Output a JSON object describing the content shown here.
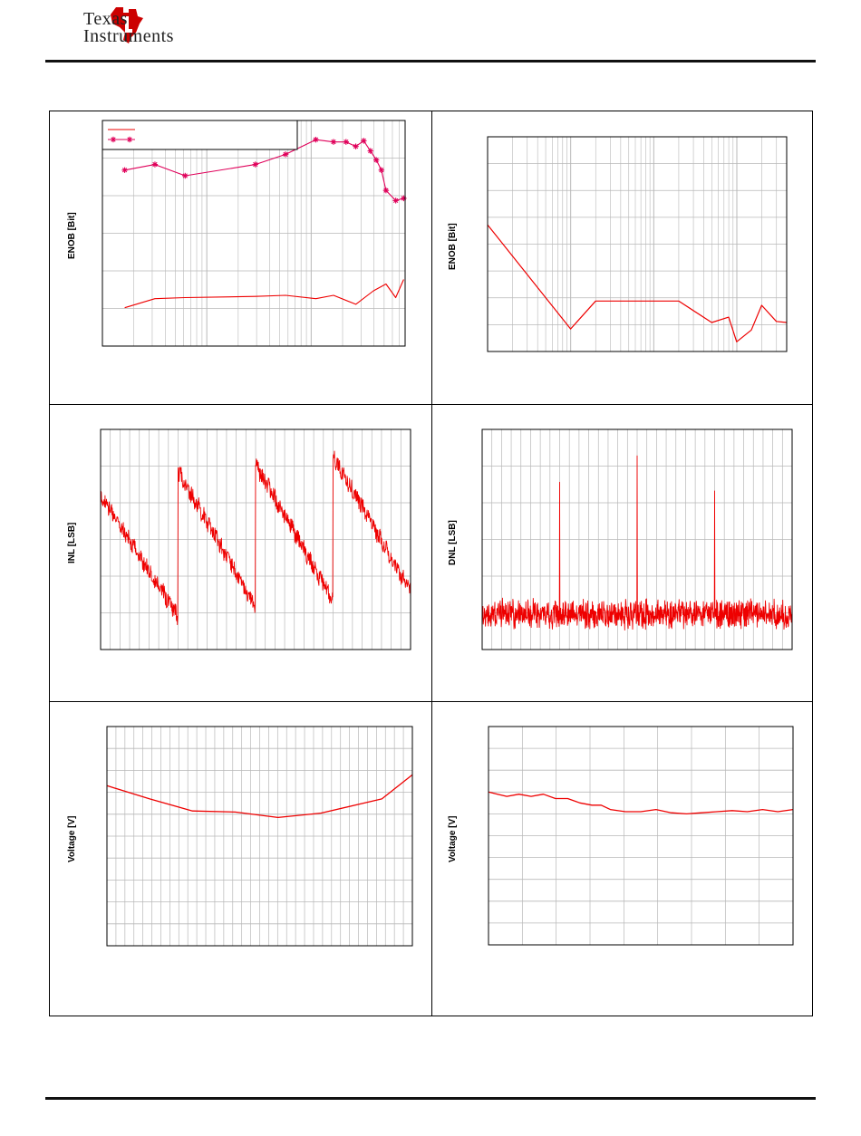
{
  "header": {
    "logo_line1": "Texas",
    "logo_line2": "Instruments",
    "brand_color": "#cc0000"
  },
  "colors": {
    "trace": "#ee0000",
    "trace_marker": "#e0005a",
    "grid": "#b8b8b8"
  },
  "chart_data": [
    {
      "type": "line",
      "ylabel": "ENOB [Bit]",
      "xscale": "log",
      "grid": true,
      "legend": "top-left",
      "series": [
        {
          "marker": "none",
          "x": [
            0.05,
            0.1,
            0.2,
            1,
            2,
            4,
            6,
            10,
            15,
            20,
            25,
            30
          ],
          "y": [
            0.83,
            0.79,
            0.785,
            0.78,
            0.775,
            0.79,
            0.775,
            0.815,
            0.755,
            0.725,
            0.785,
            0.705
          ]
        },
        {
          "marker": "asterisk",
          "x": [
            0.05,
            0.1,
            0.2,
            1,
            2,
            4,
            6,
            8,
            10,
            12,
            14,
            16,
            18,
            20,
            25,
            30
          ],
          "y": [
            0.22,
            0.195,
            0.245,
            0.195,
            0.15,
            0.085,
            0.095,
            0.095,
            0.115,
            0.09,
            0.135,
            0.175,
            0.22,
            0.31,
            0.355,
            0.345
          ]
        }
      ]
    },
    {
      "type": "line",
      "ylabel": "ENOB [Bit]",
      "xscale": "log",
      "grid": true,
      "series": [
        {
          "x": [
            0.1,
            1,
            2,
            20,
            50,
            80,
            100,
            150,
            200,
            300,
            400
          ],
          "y": [
            0.41,
            0.895,
            0.765,
            0.765,
            0.865,
            0.84,
            0.955,
            0.9,
            0.785,
            0.86,
            0.865
          ]
        }
      ]
    },
    {
      "type": "line",
      "ylabel": "INL [LSB]",
      "grid": true,
      "shape": "sawtooth",
      "segments": 4,
      "series": [
        {
          "x": [
            0,
            25,
            50,
            75,
            100
          ],
          "y_start": 0.3,
          "y_end": 0.85
        }
      ]
    },
    {
      "type": "line",
      "ylabel": "DNL [LSB]",
      "grid": true,
      "shape": "noise-with-spikes",
      "baseline": 0.84,
      "spikes": [
        {
          "x": 25,
          "y": 0.24
        },
        {
          "x": 50,
          "y": 0.12
        },
        {
          "x": 75,
          "y": 0.28
        }
      ]
    },
    {
      "type": "line",
      "ylabel": "Voltage [V]",
      "grid": true,
      "series": [
        {
          "x": [
            0,
            0.14,
            0.28,
            0.42,
            0.56,
            0.7,
            0.9,
            1
          ],
          "y": [
            0.27,
            0.33,
            0.385,
            0.39,
            0.415,
            0.395,
            0.33,
            0.22
          ]
        }
      ]
    },
    {
      "type": "line",
      "ylabel": "Voltage [V]",
      "grid": true,
      "series": [
        {
          "x": [
            0,
            0.03,
            0.06,
            0.1,
            0.14,
            0.18,
            0.22,
            0.26,
            0.3,
            0.34,
            0.37,
            0.4,
            0.45,
            0.5,
            0.55,
            0.6,
            0.65,
            0.7,
            0.75,
            0.8,
            0.85,
            0.9,
            0.95,
            1
          ],
          "y": [
            0.3,
            0.31,
            0.32,
            0.31,
            0.32,
            0.31,
            0.33,
            0.33,
            0.35,
            0.36,
            0.36,
            0.38,
            0.39,
            0.39,
            0.38,
            0.395,
            0.4,
            0.395,
            0.39,
            0.385,
            0.39,
            0.38,
            0.39,
            0.38
          ]
        }
      ]
    }
  ]
}
